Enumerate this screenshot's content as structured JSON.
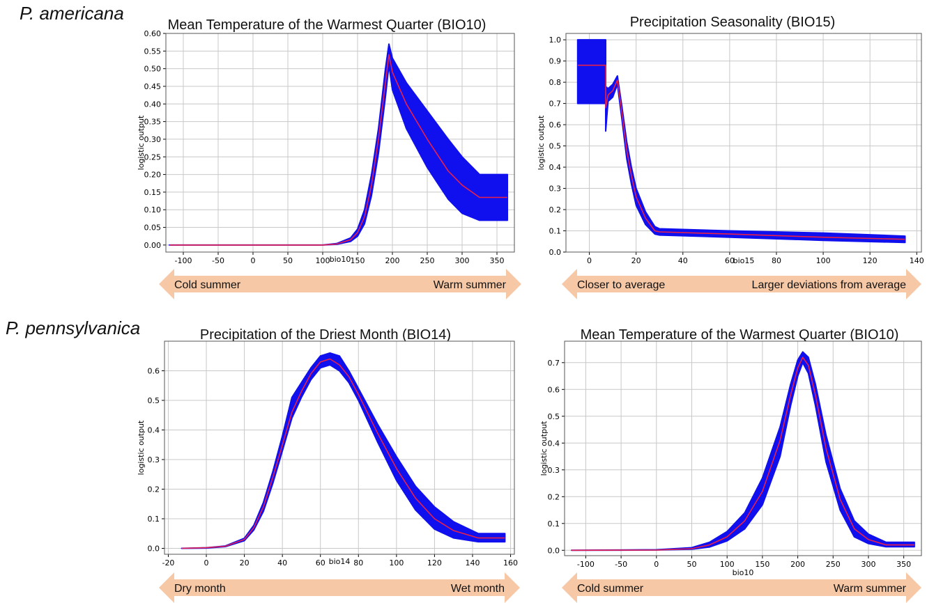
{
  "species": [
    "P. americana",
    "P. pennsylvanica"
  ],
  "colors": {
    "band": "#1010ee",
    "mean": "#e8204a",
    "arrow": "#f6c8a6",
    "grid": "#c8c8c8"
  },
  "chart_data": [
    {
      "type": "line",
      "title": "Mean Temperature of the Warmest Quarter (BIO10)",
      "xlabel": "bio10",
      "ylabel": "logistic output",
      "xlim": [
        -125,
        375
      ],
      "ylim": [
        -0.02,
        0.6
      ],
      "xticks": [
        -100,
        -50,
        0,
        50,
        100,
        150,
        200,
        250,
        300,
        350
      ],
      "yticks": [
        0.0,
        0.05,
        0.1,
        0.15,
        0.2,
        0.25,
        0.3,
        0.35,
        0.4,
        0.45,
        0.5,
        0.55,
        0.6
      ],
      "ytick_labels": [
        "0.00",
        "0.05",
        "0.10",
        "0.15",
        "0.20",
        "0.25",
        "0.30",
        "0.35",
        "0.40",
        "0.45",
        "0.50",
        "0.55",
        "0.60"
      ],
      "grid": true,
      "arrow": {
        "left": "Cold summer",
        "right": "Warm summer"
      },
      "series": [
        {
          "x": [
            -120,
            100,
            120,
            140,
            150,
            160,
            170,
            180,
            190,
            195,
            200,
            220,
            250,
            280,
            300,
            325,
            365
          ],
          "mean": [
            0,
            0,
            0.003,
            0.015,
            0.035,
            0.08,
            0.17,
            0.3,
            0.46,
            0.54,
            0.49,
            0.4,
            0.3,
            0.21,
            0.17,
            0.135,
            0.135
          ],
          "upper": [
            0,
            0,
            0.004,
            0.02,
            0.045,
            0.1,
            0.2,
            0.33,
            0.5,
            0.57,
            0.53,
            0.46,
            0.38,
            0.3,
            0.25,
            0.2,
            0.2
          ],
          "lower": [
            0,
            0,
            0.002,
            0.01,
            0.025,
            0.06,
            0.14,
            0.26,
            0.42,
            0.51,
            0.44,
            0.33,
            0.22,
            0.13,
            0.09,
            0.07,
            0.07
          ]
        }
      ]
    },
    {
      "type": "line",
      "title": "Precipitation Seasonality (BIO15)",
      "xlabel": "bio15",
      "ylabel": "logistic output",
      "xlim": [
        -10,
        142
      ],
      "ylim": [
        0,
        1.03
      ],
      "xticks": [
        0,
        20,
        40,
        60,
        80,
        100,
        120,
        140
      ],
      "yticks": [
        0,
        0.1,
        0.2,
        0.3,
        0.4,
        0.5,
        0.6,
        0.7,
        0.8,
        0.9,
        1.0
      ],
      "ytick_labels": [
        "0.0",
        "0.1",
        "0.2",
        "0.3",
        "0.4",
        "0.5",
        "0.6",
        "0.7",
        "0.8",
        "0.9",
        "1.0"
      ],
      "grid": true,
      "arrow": {
        "left": "Closer to average",
        "right": "Larger deviations from average"
      },
      "series": [
        {
          "x": [
            -5,
            7,
            7,
            8,
            10,
            12,
            14,
            16,
            18,
            20,
            24,
            28,
            30,
            60,
            100,
            135
          ],
          "mean": [
            0.88,
            0.88,
            0.68,
            0.74,
            0.76,
            0.81,
            0.65,
            0.48,
            0.36,
            0.26,
            0.16,
            0.1,
            0.095,
            0.085,
            0.07,
            0.06
          ],
          "upper": [
            1.0,
            1.0,
            0.78,
            0.77,
            0.79,
            0.83,
            0.68,
            0.52,
            0.4,
            0.3,
            0.19,
            0.12,
            0.11,
            0.1,
            0.09,
            0.075
          ],
          "lower": [
            0.7,
            0.7,
            0.57,
            0.71,
            0.73,
            0.79,
            0.62,
            0.44,
            0.32,
            0.22,
            0.13,
            0.085,
            0.08,
            0.07,
            0.055,
            0.045
          ]
        }
      ]
    },
    {
      "type": "line",
      "title": "Precipitation of the Driest Month (BIO14)",
      "xlabel": "bio14",
      "ylabel": "logistic output",
      "xlim": [
        -22,
        162
      ],
      "ylim": [
        -0.02,
        0.7
      ],
      "xticks": [
        -20,
        0,
        20,
        40,
        60,
        80,
        100,
        120,
        140,
        160
      ],
      "yticks": [
        0,
        0.1,
        0.2,
        0.3,
        0.4,
        0.5,
        0.6
      ],
      "ytick_labels": [
        "0.0",
        "0.1",
        "0.2",
        "0.3",
        "0.4",
        "0.5",
        "0.6"
      ],
      "grid": true,
      "arrow": {
        "left": "Dry month",
        "right": "Wet month"
      },
      "series": [
        {
          "x": [
            -13,
            0,
            10,
            20,
            25,
            30,
            35,
            40,
            45,
            50,
            55,
            60,
            65,
            70,
            75,
            80,
            90,
            100,
            110,
            120,
            130,
            143,
            157
          ],
          "mean": [
            0,
            0.002,
            0.007,
            0.03,
            0.07,
            0.14,
            0.24,
            0.35,
            0.46,
            0.53,
            0.59,
            0.63,
            0.64,
            0.62,
            0.58,
            0.52,
            0.39,
            0.27,
            0.17,
            0.1,
            0.06,
            0.035,
            0.035
          ],
          "upper": [
            0,
            0.002,
            0.008,
            0.034,
            0.078,
            0.155,
            0.26,
            0.38,
            0.51,
            0.56,
            0.61,
            0.65,
            0.66,
            0.65,
            0.6,
            0.54,
            0.42,
            0.31,
            0.21,
            0.14,
            0.09,
            0.05,
            0.05
          ],
          "lower": [
            0,
            0.001,
            0.006,
            0.026,
            0.062,
            0.125,
            0.22,
            0.33,
            0.44,
            0.51,
            0.57,
            0.61,
            0.62,
            0.6,
            0.56,
            0.5,
            0.36,
            0.23,
            0.13,
            0.065,
            0.035,
            0.022,
            0.022
          ]
        }
      ]
    },
    {
      "type": "line",
      "title": "Mean Temperature of the Warmest Quarter (BIO10)",
      "xlabel": "bio10",
      "ylabel": "logistic output",
      "xlim": [
        -130,
        375
      ],
      "ylim": [
        -0.02,
        0.78
      ],
      "xticks": [
        -100,
        -50,
        0,
        50,
        100,
        150,
        200,
        250,
        300,
        350
      ],
      "yticks": [
        0,
        0.1,
        0.2,
        0.3,
        0.4,
        0.5,
        0.6,
        0.7
      ],
      "ytick_labels": [
        "0.0",
        "0.1",
        "0.2",
        "0.3",
        "0.4",
        "0.5",
        "0.6",
        "0.7"
      ],
      "grid": true,
      "arrow": {
        "left": "Cold summer",
        "right": "Warm summer"
      },
      "series": [
        {
          "x": [
            -120,
            0,
            50,
            75,
            100,
            125,
            150,
            175,
            190,
            200,
            207,
            215,
            225,
            240,
            260,
            280,
            300,
            325,
            365
          ],
          "mean": [
            0,
            0.001,
            0.006,
            0.02,
            0.05,
            0.11,
            0.22,
            0.41,
            0.58,
            0.68,
            0.72,
            0.69,
            0.58,
            0.38,
            0.19,
            0.08,
            0.04,
            0.02,
            0.02
          ],
          "upper": [
            0,
            0.002,
            0.01,
            0.03,
            0.07,
            0.14,
            0.27,
            0.46,
            0.62,
            0.71,
            0.74,
            0.72,
            0.62,
            0.43,
            0.23,
            0.11,
            0.06,
            0.03,
            0.03
          ],
          "lower": [
            0,
            0.001,
            0.004,
            0.012,
            0.035,
            0.08,
            0.17,
            0.35,
            0.54,
            0.65,
            0.7,
            0.66,
            0.54,
            0.33,
            0.15,
            0.05,
            0.025,
            0.013,
            0.013
          ]
        }
      ]
    }
  ]
}
